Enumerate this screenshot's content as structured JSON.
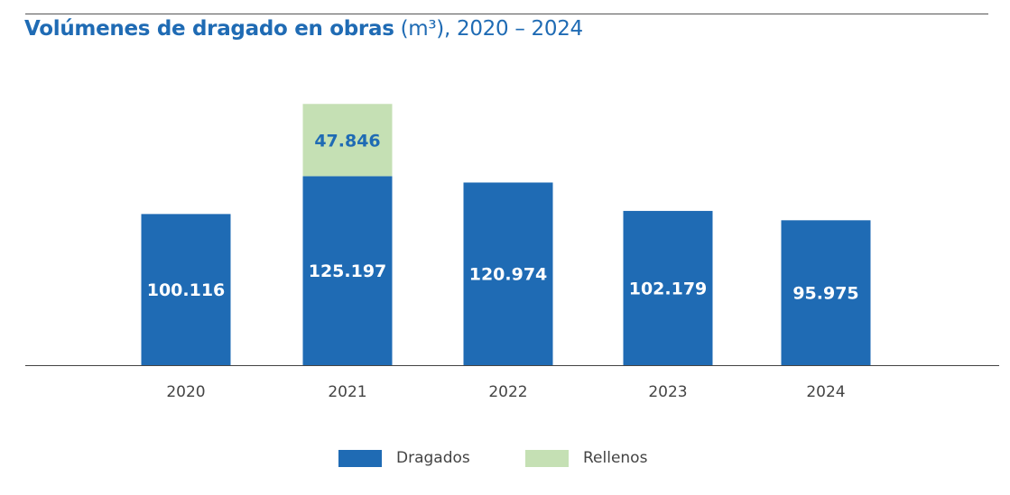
{
  "chart_data": {
    "type": "bar",
    "stacked": true,
    "title": "Volúmenes de dragado en obras",
    "title_unit": "(m³), 2020 – 2024",
    "categories": [
      "2020",
      "2021",
      "2022",
      "2023",
      "2024"
    ],
    "series": [
      {
        "name": "Dragados",
        "color": "#1f6bb4",
        "values": [
          100116,
          125197,
          120974,
          102179,
          95975
        ],
        "labels": [
          "100.116",
          "125.197",
          "120.974",
          "102.179",
          "95.975"
        ]
      },
      {
        "name": "Rellenos",
        "color": "#c5e0b4",
        "values": [
          0,
          47846,
          0,
          0,
          0
        ],
        "labels": [
          "",
          "47.846",
          "",
          "",
          ""
        ]
      }
    ],
    "ylim": [
      0,
      175000
    ],
    "grid": false,
    "legend_position": "bottom"
  }
}
